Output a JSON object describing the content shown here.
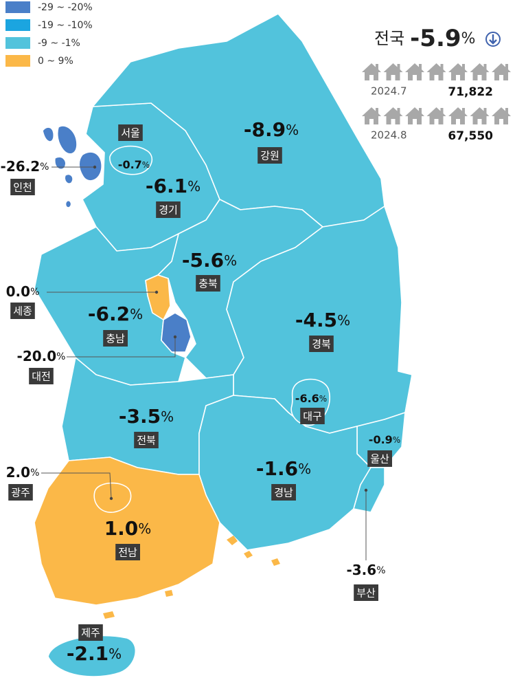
{
  "legend": {
    "items": [
      {
        "label": "-29 ~ -20%",
        "color": "#4a7fc8"
      },
      {
        "label": "-19 ~ -10%",
        "color": "#1ba5e0"
      },
      {
        "label": "-9 ~ -1%",
        "color": "#52c3dc"
      },
      {
        "label": "0 ~ 9%",
        "color": "#fbb848"
      }
    ]
  },
  "national": {
    "name": "전국",
    "value": -5.9,
    "value_label": "-5.9",
    "unit": "%",
    "rows": [
      {
        "period": "2024.7",
        "count": 71822,
        "count_label": "71,822",
        "color": "#f4a263"
      },
      {
        "period": "2024.8",
        "count": 67550,
        "count_label": "67,550",
        "color": "#3f62ad"
      }
    ]
  },
  "unit": "%",
  "regions": [
    {
      "name": "서울",
      "value": -0.7,
      "value_label": "-0.7",
      "color": "#52c3dc"
    },
    {
      "name": "인천",
      "value": -26.2,
      "value_label": "-26.2",
      "color": "#4a7fc8"
    },
    {
      "name": "경기",
      "value": -6.1,
      "value_label": "-6.1",
      "color": "#52c3dc"
    },
    {
      "name": "강원",
      "value": -8.9,
      "value_label": "-8.9",
      "color": "#52c3dc"
    },
    {
      "name": "충북",
      "value": -5.6,
      "value_label": "-5.6",
      "color": "#52c3dc"
    },
    {
      "name": "세종",
      "value": 0.0,
      "value_label": "0.0",
      "color": "#fbb848"
    },
    {
      "name": "충남",
      "value": -6.2,
      "value_label": "-6.2",
      "color": "#52c3dc"
    },
    {
      "name": "대전",
      "value": -20.0,
      "value_label": "-20.0",
      "color": "#4a7fc8"
    },
    {
      "name": "경북",
      "value": -4.5,
      "value_label": "-4.5",
      "color": "#52c3dc"
    },
    {
      "name": "대구",
      "value": -6.6,
      "value_label": "-6.6",
      "color": "#52c3dc"
    },
    {
      "name": "울산",
      "value": -0.9,
      "value_label": "-0.9",
      "color": "#52c3dc"
    },
    {
      "name": "전북",
      "value": -3.5,
      "value_label": "-3.5",
      "color": "#52c3dc"
    },
    {
      "name": "경남",
      "value": -1.6,
      "value_label": "-1.6",
      "color": "#52c3dc"
    },
    {
      "name": "광주",
      "value": 2.0,
      "value_label": "2.0",
      "color": "#fbb848"
    },
    {
      "name": "전남",
      "value": 1.0,
      "value_label": "1.0",
      "color": "#fbb848"
    },
    {
      "name": "부산",
      "value": -3.6,
      "value_label": "-3.6",
      "color": "#52c3dc"
    },
    {
      "name": "제주",
      "value": -2.1,
      "value_label": "-2.1",
      "color": "#52c3dc"
    }
  ]
}
